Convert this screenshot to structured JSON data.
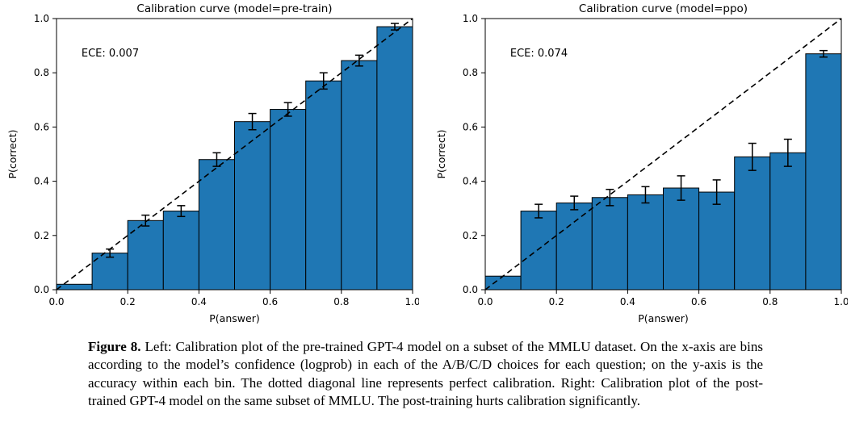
{
  "figure": {
    "caption_label": "Figure 8.",
    "caption_text": "Left: Calibration plot of the pre-trained GPT-4 model on a subset of the MMLU dataset. On the x-axis are bins according to the model’s confidence (logprob) in each of the A/B/C/D choices for each question; on the y-axis is the accuracy within each bin. The dotted diagonal line represents perfect calibration. Right: Calibration plot of the post-trained GPT-4 model on the same subset of MMLU. The post-training hurts calibration significantly."
  },
  "chart_data": [
    {
      "type": "bar",
      "title": "Calibration curve (model=pre-train)",
      "annotation": "ECE: 0.007",
      "xlabel": "P(answer)",
      "ylabel": "P(correct)",
      "xlim": [
        0.0,
        1.0
      ],
      "ylim": [
        0.0,
        1.0
      ],
      "xticks": [
        0.0,
        0.2,
        0.4,
        0.6,
        0.8,
        1.0
      ],
      "yticks": [
        0.0,
        0.2,
        0.4,
        0.6,
        0.8,
        1.0
      ],
      "bin_width": 0.1,
      "bin_starts": [
        0.0,
        0.1,
        0.2,
        0.3,
        0.4,
        0.5,
        0.6,
        0.7,
        0.8,
        0.9
      ],
      "values": [
        0.02,
        0.135,
        0.255,
        0.29,
        0.48,
        0.62,
        0.665,
        0.77,
        0.845,
        0.97
      ],
      "errors": [
        0,
        0.015,
        0.02,
        0.02,
        0.025,
        0.03,
        0.025,
        0.03,
        0.02,
        0.012
      ],
      "diagonal_line": true,
      "grid": false,
      "bar_color": "#1f77b4",
      "bar_edge_color": "#000000"
    },
    {
      "type": "bar",
      "title": "Calibration curve (model=ppo)",
      "annotation": "ECE: 0.074",
      "xlabel": "P(answer)",
      "ylabel": "P(correct)",
      "xlim": [
        0.0,
        1.0
      ],
      "ylim": [
        0.0,
        1.0
      ],
      "xticks": [
        0.0,
        0.2,
        0.4,
        0.6,
        0.8,
        1.0
      ],
      "yticks": [
        0.0,
        0.2,
        0.4,
        0.6,
        0.8,
        1.0
      ],
      "bin_width": 0.1,
      "bin_starts": [
        0.0,
        0.1,
        0.2,
        0.3,
        0.4,
        0.5,
        0.6,
        0.7,
        0.8,
        0.9
      ],
      "values": [
        0.05,
        0.29,
        0.32,
        0.34,
        0.35,
        0.375,
        0.36,
        0.49,
        0.505,
        0.87
      ],
      "errors": [
        0,
        0.025,
        0.025,
        0.03,
        0.03,
        0.045,
        0.045,
        0.05,
        0.05,
        0.012
      ],
      "diagonal_line": true,
      "grid": false,
      "bar_color": "#1f77b4",
      "bar_edge_color": "#000000"
    }
  ]
}
